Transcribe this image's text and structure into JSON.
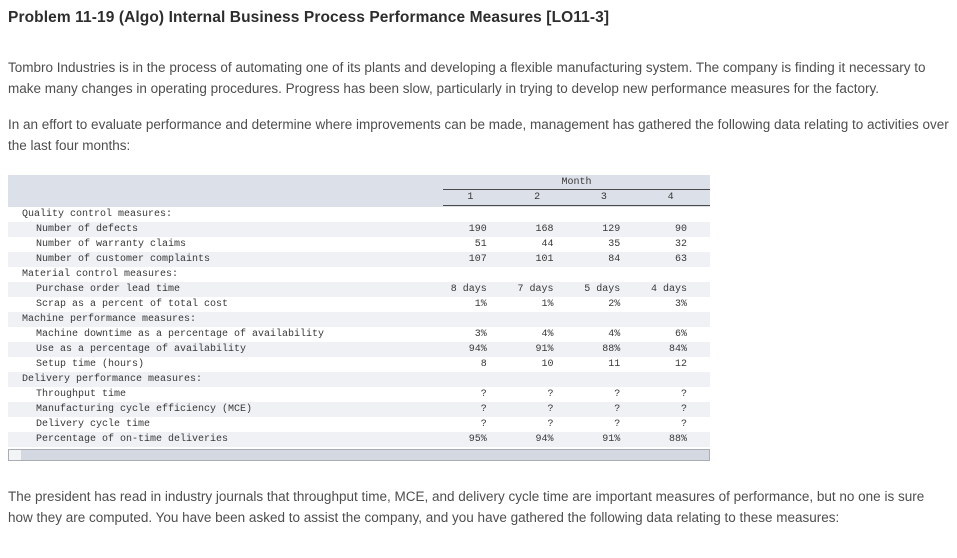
{
  "page": {
    "title": "Problem 11-19 (Algo) Internal Business Process Performance Measures [LO11-3]",
    "intro_paragraph_1": "Tombro Industries is in the process of automating one of its plants and developing a flexible manufacturing system. The company is finding it necessary to make many changes in operating procedures. Progress has been slow, particularly in trying to develop new performance measures for the factory.",
    "intro_paragraph_2": "In an effort to evaluate performance and determine where improvements can be made, management has gathered the following data relating to activities over the last four months:",
    "footer_paragraph": "The president has read in industry journals that throughput time, MCE, and delivery cycle time are important measures of performance, but no one is sure how they are computed. You have been asked to assist the company, and you have gathered the following data relating to these measures:"
  },
  "table": {
    "header_group": "Month",
    "columns": [
      "1",
      "2",
      "3",
      "4"
    ],
    "rows": [
      {
        "label": "Quality control measures:",
        "type": "section",
        "values": [
          "",
          "",
          "",
          ""
        ]
      },
      {
        "label": "Number of defects",
        "type": "item",
        "values": [
          "190",
          "168",
          "129",
          "90"
        ]
      },
      {
        "label": "Number of warranty claims",
        "type": "item",
        "values": [
          "51",
          "44",
          "35",
          "32"
        ]
      },
      {
        "label": "Number of customer complaints",
        "type": "item",
        "values": [
          "107",
          "101",
          "84",
          "63"
        ]
      },
      {
        "label": "Material control measures:",
        "type": "section",
        "values": [
          "",
          "",
          "",
          ""
        ]
      },
      {
        "label": "Purchase order lead time",
        "type": "item",
        "values": [
          "8 days",
          "7 days",
          "5 days",
          "4 days"
        ]
      },
      {
        "label": "Scrap as a percent of total cost",
        "type": "item",
        "values": [
          "1%",
          "1%",
          "2%",
          "3%"
        ]
      },
      {
        "label": "Machine performance measures:",
        "type": "section",
        "values": [
          "",
          "",
          "",
          ""
        ]
      },
      {
        "label": "Machine downtime as a percentage of availability",
        "type": "item",
        "values": [
          "3%",
          "4%",
          "4%",
          "6%"
        ]
      },
      {
        "label": "Use as a percentage of availability",
        "type": "item",
        "values": [
          "94%",
          "91%",
          "88%",
          "84%"
        ]
      },
      {
        "label": "Setup time (hours)",
        "type": "item",
        "values": [
          "8",
          "10",
          "11",
          "12"
        ]
      },
      {
        "label": "Delivery performance measures:",
        "type": "section",
        "values": [
          "",
          "",
          "",
          ""
        ]
      },
      {
        "label": "Throughput time",
        "type": "item",
        "values": [
          "?",
          "?",
          "?",
          "?"
        ]
      },
      {
        "label": "Manufacturing cycle efficiency (MCE)",
        "type": "item",
        "values": [
          "?",
          "?",
          "?",
          "?"
        ]
      },
      {
        "label": "Delivery cycle time",
        "type": "item",
        "values": [
          "?",
          "?",
          "?",
          "?"
        ]
      },
      {
        "label": "Percentage of on-time deliveries",
        "type": "item",
        "values": [
          "95%",
          "94%",
          "91%",
          "88%"
        ]
      }
    ]
  },
  "colors": {
    "header_band": "#dce0e9",
    "row_stripe": "#eff1f4",
    "rule_line": "#4a4a4a",
    "body_text": "#4e4e4e",
    "title_text": "#2d2d2d",
    "scrollbar_track": "#f3f4f5",
    "scrollbar_thumb": "#d3d8e1",
    "scrollbar_border": "#a9adb5"
  }
}
